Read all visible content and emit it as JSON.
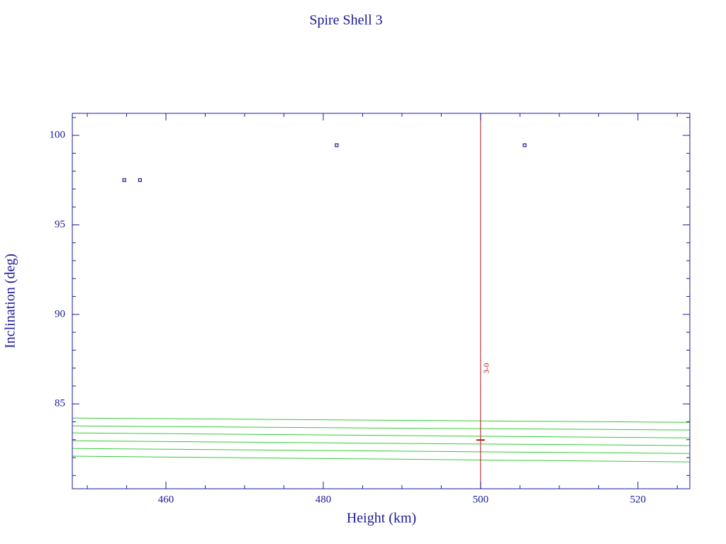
{
  "chart_data": {
    "type": "scatter",
    "title": "Spire Shell 3",
    "xlabel": "Height (km)",
    "ylabel": "Inclination (deg)",
    "xlim": [
      448.1,
      526.6
    ],
    "ylim": [
      80.26,
      101.23
    ],
    "xticks": [
      460,
      480,
      500,
      520
    ],
    "yticks": [
      85,
      90,
      95,
      100
    ],
    "xminorticks": [
      450,
      455,
      465,
      470,
      475,
      485,
      490,
      495,
      505,
      510,
      515,
      525
    ],
    "yminorticks": [
      81,
      82,
      83,
      84,
      86,
      87,
      88,
      89,
      91,
      92,
      93,
      94,
      96,
      97,
      98,
      99,
      101
    ],
    "axis_color": "#1a1a9a",
    "series": [
      {
        "type": "scatter",
        "color": "#1a1a9a",
        "x": [
          454.7,
          456.7,
          481.7,
          505.6
        ],
        "values": [
          97.5,
          97.5,
          99.45,
          99.45
        ]
      },
      {
        "type": "line",
        "color": "#33cc33",
        "x": [
          448.1,
          467.5,
          487,
          506.5,
          526.6
        ],
        "values": [
          84.21,
          84.15,
          84.09,
          84.03,
          83.97
        ]
      },
      {
        "type": "line",
        "color": "#33cc33",
        "x": [
          448.1,
          467.5,
          487,
          506.5,
          526.6
        ],
        "values": [
          83.77,
          83.71,
          83.65,
          83.6,
          83.54
        ]
      },
      {
        "type": "line",
        "color": "#33cc33",
        "x": [
          448.1,
          467.5,
          487,
          506.5,
          526.6
        ],
        "values": [
          83.38,
          83.31,
          83.24,
          83.17,
          83.1
        ]
      },
      {
        "type": "line",
        "color": "#33cc33",
        "x": [
          448.1,
          467.5,
          487,
          506.5,
          526.6
        ],
        "values": [
          82.94,
          82.87,
          82.8,
          82.74,
          82.67
        ]
      },
      {
        "type": "line",
        "color": "#33cc33",
        "x": [
          448.1,
          467.5,
          487,
          506.5,
          526.6
        ],
        "values": [
          82.51,
          82.44,
          82.37,
          82.3,
          82.23
        ]
      },
      {
        "type": "line",
        "color": "#33cc33",
        "x": [
          448.1,
          467.5,
          487,
          506.5,
          526.6
        ],
        "values": [
          82.08,
          82.0,
          81.92,
          81.84,
          81.76
        ]
      }
    ],
    "vlines": [
      {
        "x": 500,
        "label": "3-0",
        "color": "#b01010"
      }
    ],
    "markers": [
      {
        "x": 500,
        "y": 82.98,
        "color": "#cc1010"
      }
    ]
  }
}
